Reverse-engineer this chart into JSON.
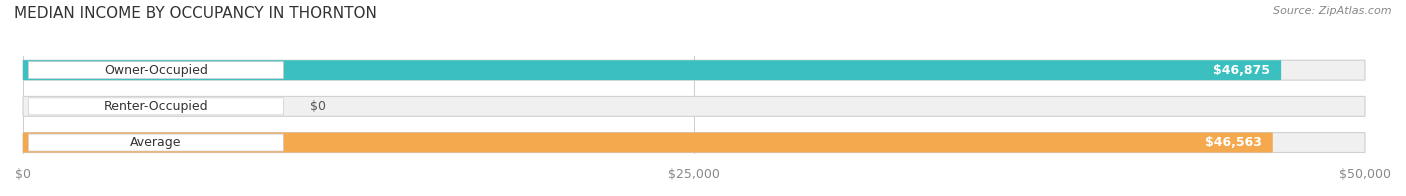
{
  "title": "MEDIAN INCOME BY OCCUPANCY IN THORNTON",
  "source": "Source: ZipAtlas.com",
  "categories": [
    "Owner-Occupied",
    "Renter-Occupied",
    "Average"
  ],
  "values": [
    46875,
    0,
    46563
  ],
  "labels": [
    "$46,875",
    "$0",
    "$46,563"
  ],
  "bar_colors": [
    "#3bbfbf",
    "#c9a8d4",
    "#f5a94e"
  ],
  "bar_bg_color": "#f0f0f0",
  "xlim": [
    0,
    50000
  ],
  "xticks": [
    0,
    25000,
    50000
  ],
  "xticklabels": [
    "$0",
    "$25,000",
    "$50,000"
  ],
  "title_fontsize": 11,
  "source_fontsize": 8,
  "label_fontsize": 9,
  "tick_fontsize": 9,
  "background_color": "#ffffff"
}
